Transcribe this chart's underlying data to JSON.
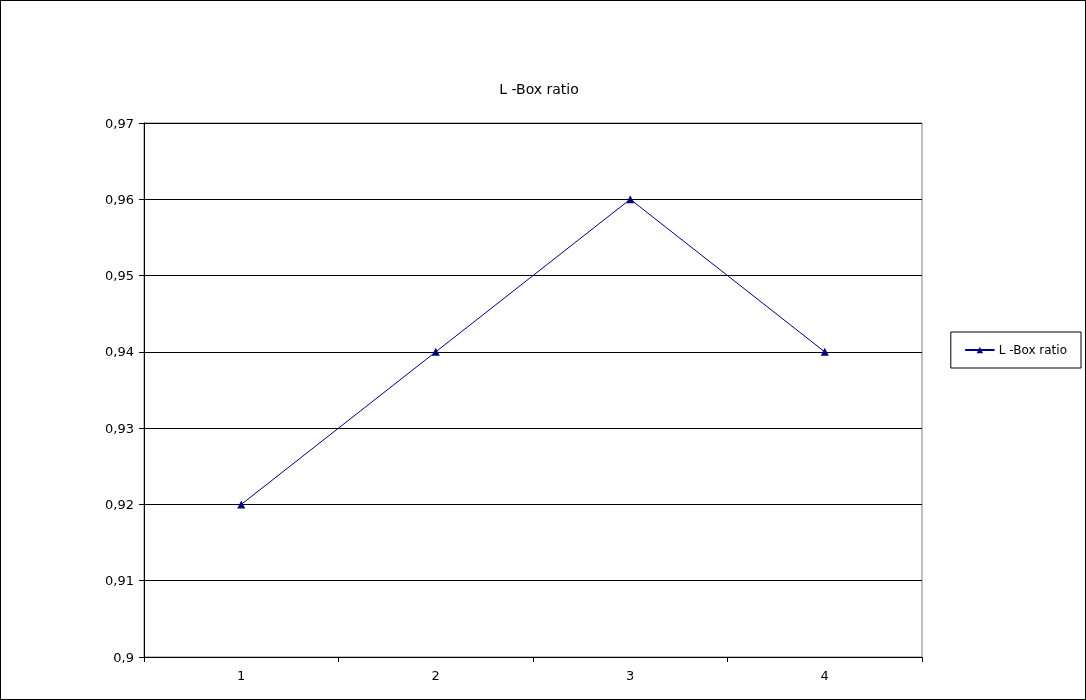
{
  "chart_data": {
    "type": "line",
    "title": "L -Box ratio",
    "categories": [
      "1",
      "2",
      "3",
      "4"
    ],
    "series": [
      {
        "name": "L -Box ratio",
        "color": "#000080",
        "values": [
          0.92,
          0.94,
          0.96,
          0.94
        ]
      }
    ],
    "ylim": [
      0.9,
      0.97
    ],
    "yticks": [
      {
        "value": 0.9,
        "label": "0,9"
      },
      {
        "value": 0.91,
        "label": "0,91"
      },
      {
        "value": 0.92,
        "label": "0,92"
      },
      {
        "value": 0.93,
        "label": "0,93"
      },
      {
        "value": 0.94,
        "label": "0,94"
      },
      {
        "value": 0.95,
        "label": "0,95"
      },
      {
        "value": 0.96,
        "label": "0,96"
      },
      {
        "value": 0.97,
        "label": "0,97"
      }
    ],
    "grid": "y",
    "legend": "right",
    "marker": "triangle",
    "line_style": "solid"
  }
}
